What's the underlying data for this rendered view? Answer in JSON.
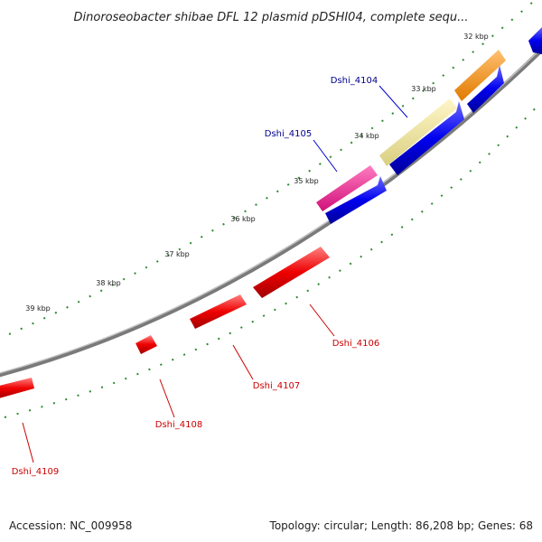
{
  "title": "Dinoroseobacter shibae DFL 12 plasmid pDSHI04, complete sequ...",
  "footer": {
    "accession": "Accession: NC_009958",
    "summary": "Topology: circular; Length: 86,208 bp; Genes: 68"
  },
  "scale_labels": [
    "32 kbp",
    "33 kbp",
    "34 kbp",
    "35 kbp",
    "36 kbp",
    "37 kbp",
    "38 kbp",
    "39 kbp"
  ],
  "gene_labels": [
    {
      "name": "Dshi_4104",
      "color": "#00008b"
    },
    {
      "name": "Dshi_4105",
      "color": "#00008b"
    },
    {
      "name": "Dshi_4106",
      "color": "#cc0000"
    },
    {
      "name": "Dshi_4107",
      "color": "#cc0000"
    },
    {
      "name": "Dshi_4108",
      "color": "#cc0000"
    },
    {
      "name": "Dshi_4109",
      "color": "#cc0000"
    }
  ],
  "colors": {
    "backbone": "#8c8c8c",
    "ticks": "#1e7a1e",
    "forward": "#0000ee",
    "reverse": "#ee0000",
    "orange": "#ff8c00",
    "khaki": "#f0e68c",
    "magenta": "#ff1493"
  }
}
